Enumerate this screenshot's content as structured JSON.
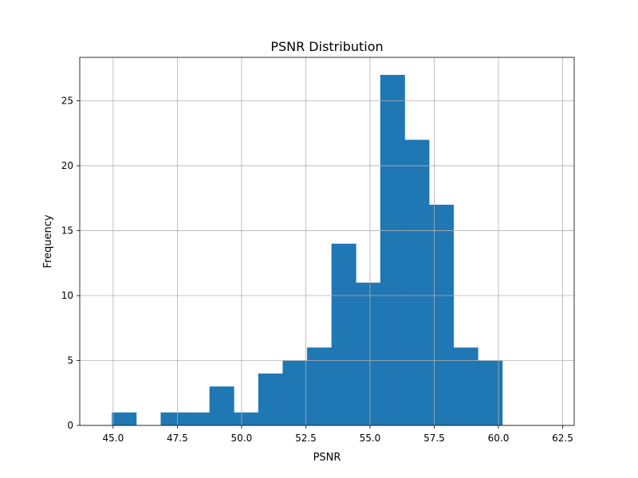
{
  "chart_data": {
    "type": "bar",
    "title": "PSNR Distribution",
    "xlabel": "PSNR",
    "ylabel": "Frequency",
    "xlim": [
      43.7,
      62.95
    ],
    "ylim": [
      0,
      28.35
    ],
    "grid": true,
    "bar_color": "#1f77b4",
    "grid_color": "#b0b0b0",
    "bins": [
      {
        "start": 44.95,
        "end": 45.9,
        "count": 1
      },
      {
        "start": 45.9,
        "end": 46.85,
        "count": 0
      },
      {
        "start": 46.85,
        "end": 47.8,
        "count": 1
      },
      {
        "start": 47.8,
        "end": 48.75,
        "count": 1
      },
      {
        "start": 48.75,
        "end": 49.7,
        "count": 3
      },
      {
        "start": 49.7,
        "end": 50.65,
        "count": 1
      },
      {
        "start": 50.65,
        "end": 51.6,
        "count": 4
      },
      {
        "start": 51.6,
        "end": 52.55,
        "count": 5
      },
      {
        "start": 52.55,
        "end": 53.5,
        "count": 6
      },
      {
        "start": 53.5,
        "end": 54.45,
        "count": 14
      },
      {
        "start": 54.45,
        "end": 55.4,
        "count": 11
      },
      {
        "start": 55.4,
        "end": 56.35,
        "count": 27
      },
      {
        "start": 56.35,
        "end": 57.3,
        "count": 22
      },
      {
        "start": 57.3,
        "end": 58.25,
        "count": 17
      },
      {
        "start": 58.25,
        "end": 59.2,
        "count": 6
      },
      {
        "start": 59.2,
        "end": 60.15,
        "count": 5
      }
    ],
    "xticks": [
      45.0,
      47.5,
      50.0,
      52.5,
      55.0,
      57.5,
      60.0,
      62.5
    ],
    "xtick_labels": [
      "45.0",
      "47.5",
      "50.0",
      "52.5",
      "55.0",
      "57.5",
      "60.0",
      "62.5"
    ],
    "yticks": [
      0,
      5,
      10,
      15,
      20,
      25
    ],
    "ytick_labels": [
      "0",
      "5",
      "10",
      "15",
      "20",
      "25"
    ]
  }
}
